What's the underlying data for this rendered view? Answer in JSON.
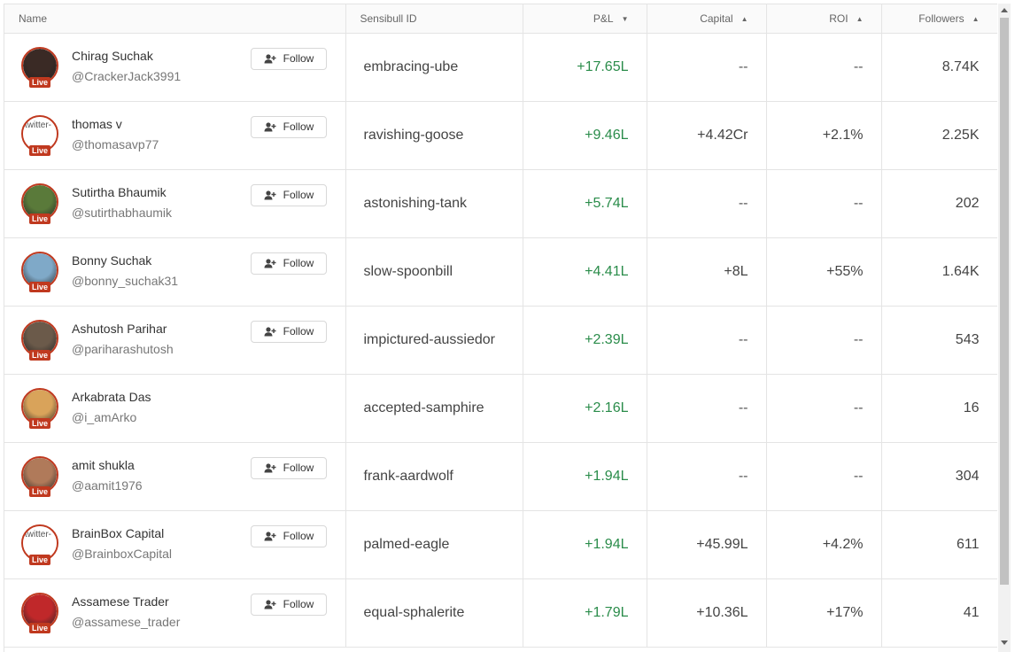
{
  "columns": {
    "name": "Name",
    "sensibull_id": "Sensibull ID",
    "pnl": "P&L",
    "capital": "Capital",
    "roi": "ROI",
    "followers": "Followers"
  },
  "sort_icons": {
    "pnl": "▼",
    "capital": "▲",
    "roi": "▲",
    "followers": "▲"
  },
  "live_label": "Live",
  "follow_label": "Follow",
  "broken_image_alt": "twitter-",
  "colors": {
    "live": "#c0391f",
    "profit": "#2a8c4a"
  },
  "rows": [
    {
      "name": "Chirag Suchak",
      "handle": "@CrackerJack3991",
      "sensibull_id": "embracing-ube",
      "pnl": "+17.65L",
      "capital": "--",
      "roi": "--",
      "followers": "8.74K",
      "has_follow": true,
      "avatar_color": "#3a2a25"
    },
    {
      "name": "thomas v",
      "handle": "@thomasavp77",
      "sensibull_id": "ravishing-goose",
      "pnl": "+9.46L",
      "capital": "+4.42Cr",
      "roi": "+2.1%",
      "followers": "2.25K",
      "has_follow": true,
      "avatar_color": "broken"
    },
    {
      "name": "Sutirtha Bhaumik",
      "handle": "@sutirthabhaumik",
      "sensibull_id": "astonishing-tank",
      "pnl": "+5.74L",
      "capital": "--",
      "roi": "--",
      "followers": "202",
      "has_follow": true,
      "avatar_color": "#5a7a3a"
    },
    {
      "name": "Bonny Suchak",
      "handle": "@bonny_suchak31",
      "sensibull_id": "slow-spoonbill",
      "pnl": "+4.41L",
      "capital": "+8L",
      "roi": "+55%",
      "followers": "1.64K",
      "has_follow": true,
      "avatar_color": "#7fa9c8"
    },
    {
      "name": "Ashutosh Parihar",
      "handle": "@pariharashutosh",
      "sensibull_id": "impictured-aussiedor",
      "pnl": "+2.39L",
      "capital": "--",
      "roi": "--",
      "followers": "543",
      "has_follow": true,
      "avatar_color": "#6b5a4a"
    },
    {
      "name": "Arkabrata Das",
      "handle": "@i_amArko",
      "sensibull_id": "accepted-samphire",
      "pnl": "+2.16L",
      "capital": "--",
      "roi": "--",
      "followers": "16",
      "has_follow": false,
      "avatar_color": "#d9a35a"
    },
    {
      "name": "amit shukla",
      "handle": "@aamit1976",
      "sensibull_id": "frank-aardwolf",
      "pnl": "+1.94L",
      "capital": "--",
      "roi": "--",
      "followers": "304",
      "has_follow": true,
      "avatar_color": "#b07a5a"
    },
    {
      "name": "BrainBox Capital",
      "handle": "@BrainboxCapital",
      "sensibull_id": "palmed-eagle",
      "pnl": "+1.94L",
      "capital": "+45.99L",
      "roi": "+4.2%",
      "followers": "611",
      "has_follow": true,
      "avatar_color": "broken"
    },
    {
      "name": "Assamese Trader",
      "handle": "@assamese_trader",
      "sensibull_id": "equal-sphalerite",
      "pnl": "+1.79L",
      "capital": "+10.36L",
      "roi": "+17%",
      "followers": "41",
      "has_follow": true,
      "avatar_color": "#c0282a"
    }
  ]
}
